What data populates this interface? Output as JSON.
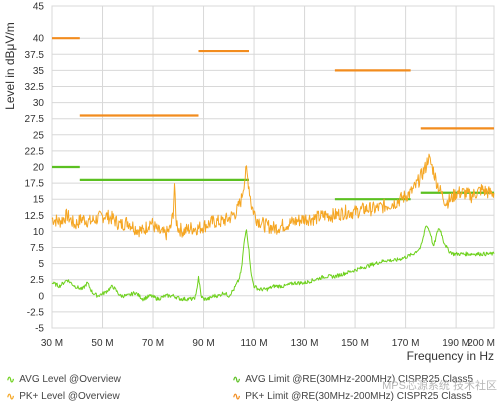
{
  "chart_data": {
    "type": "line",
    "xlabel": "Frequency in Hz",
    "ylabel": "Level in  dBμV/m",
    "xlim": [
      30,
      205
    ],
    "ylim": [
      -5,
      45
    ],
    "x_ticks": [
      30,
      50,
      70,
      90,
      110,
      130,
      150,
      170,
      190
    ],
    "x_tick_labels": [
      "30 M",
      "50 M",
      "70 M",
      "90 M",
      "110 M",
      "130 M",
      "150 M",
      "170 M",
      "190 M"
    ],
    "x_tick_label_end": "200 M",
    "y_ticks": [
      -5,
      -2.5,
      0,
      2.5,
      5,
      7.5,
      10,
      12.5,
      15,
      17.5,
      20,
      22.5,
      25,
      27.5,
      30,
      32.5,
      35,
      37.5,
      40,
      45
    ],
    "y_tick_labels": [
      "-5",
      "-2.5",
      "0",
      "2.5",
      "5",
      "7.5",
      "10",
      "12.5",
      "15",
      "17.5",
      "20",
      "22.5",
      "25",
      "27.5",
      "30",
      "32.5",
      "35",
      "37.5",
      "40",
      "45"
    ],
    "grid": true,
    "legend_position": "bottom",
    "series": [
      {
        "name": "PK+ Level @Overview",
        "color": "#f5a623",
        "x": [
          30,
          33,
          36,
          39,
          42,
          45,
          48,
          51,
          54,
          57,
          60,
          63,
          66,
          69,
          72,
          75,
          77,
          78,
          78.5,
          79,
          80,
          82,
          85,
          88,
          91,
          94,
          97,
          100,
          103,
          105,
          106,
          107,
          108,
          109,
          111,
          114,
          118,
          122,
          126,
          130,
          134,
          138,
          142,
          146,
          150,
          154,
          158,
          162,
          166,
          170,
          172,
          174,
          176,
          178,
          179,
          180,
          181,
          182,
          184,
          186,
          188,
          190,
          193,
          196,
          200,
          203,
          205
        ],
        "y": [
          12,
          11.5,
          12.5,
          11,
          12,
          11.5,
          12,
          12.5,
          12,
          11,
          11.5,
          10.5,
          10,
          11.5,
          10,
          9.5,
          10.5,
          13,
          17.5,
          12,
          10.5,
          10,
          10.5,
          10.5,
          11,
          11.5,
          11.5,
          12,
          13,
          15,
          17.5,
          19.5,
          17,
          14,
          12,
          11,
          10.5,
          11,
          11.5,
          12,
          12,
          12.5,
          12.5,
          13,
          13,
          13.5,
          13.5,
          14,
          14.5,
          15.5,
          16,
          17,
          18.5,
          20,
          21.5,
          20.5,
          19.5,
          18,
          16,
          14.5,
          15,
          16,
          16,
          15.5,
          16.5,
          16,
          16
        ]
      },
      {
        "name": "AVG Level @Overview",
        "color": "#6fd11e",
        "x": [
          30,
          33,
          36,
          39,
          42,
          44,
          46,
          48,
          51,
          54,
          57,
          60,
          63,
          66,
          69,
          72,
          75,
          78,
          81,
          84,
          86,
          87,
          88,
          89,
          90,
          92,
          94,
          96,
          98,
          100,
          102,
          104,
          105,
          106,
          107,
          108,
          109,
          110,
          112,
          115,
          118,
          122,
          126,
          130,
          134,
          138,
          142,
          146,
          150,
          154,
          158,
          162,
          166,
          170,
          173,
          176,
          177,
          178,
          179,
          180,
          181,
          182,
          183,
          184,
          185,
          187,
          189,
          191,
          193,
          196,
          200,
          203,
          205
        ],
        "y": [
          2,
          1.5,
          2.5,
          1.5,
          1,
          2,
          0.5,
          0,
          0.5,
          1.5,
          0,
          0,
          0.5,
          -0.5,
          0,
          -0.5,
          0,
          0,
          -0.5,
          -0.5,
          -0.5,
          0,
          3,
          0,
          -0.5,
          -0.5,
          0,
          0,
          0.5,
          0,
          1,
          2.5,
          4,
          8,
          10.5,
          7,
          3,
          1.5,
          1,
          1,
          1.5,
          1.5,
          2,
          2,
          2.5,
          3,
          3,
          3.5,
          4,
          4.5,
          5,
          5.5,
          5.5,
          6,
          6.5,
          7.5,
          9,
          11,
          10.5,
          9.5,
          7.5,
          9,
          10.5,
          10,
          8.5,
          7,
          6.5,
          6.5,
          6.5,
          6.5,
          6.5,
          6.5,
          6.5
        ]
      }
    ],
    "limits": [
      {
        "name": "PK+ Limit @RE(30MHz-200MHz) CISPR25 Class5",
        "color": "#f28c1e",
        "segments": [
          {
            "x": [
              30,
              41
            ],
            "y": 40
          },
          {
            "x": [
              41,
              88
            ],
            "y": 28
          },
          {
            "x": [
              88,
              108
            ],
            "y": 38
          },
          {
            "x": [
              142,
              172
            ],
            "y": 35
          },
          {
            "x": [
              176,
              205
            ],
            "y": 26
          }
        ]
      },
      {
        "name": "AVG Limit @RE(30MHz-200MHz) CISPR25 Class5",
        "color": "#5bc021",
        "segments": [
          {
            "x": [
              30,
              41
            ],
            "y": 20
          },
          {
            "x": [
              41,
              108
            ],
            "y": 18
          },
          {
            "x": [
              142,
              172
            ],
            "y": 15
          },
          {
            "x": [
              176,
              205
            ],
            "y": 16
          }
        ]
      }
    ]
  },
  "legend": {
    "avg_level": "AVG Level @Overview",
    "pk_level": "PK+ Level @Overview",
    "avg_limit": "AVG Limit @RE(30MHz-200MHz) CISPR25 Class5",
    "pk_limit": "PK+ Limit @RE(30MHz-200MHz) CISPR25 Class5"
  },
  "watermark": "MPS芯源系统 技术社区",
  "colors": {
    "grid": "#d8d8d8",
    "axis_text": "#333333"
  }
}
